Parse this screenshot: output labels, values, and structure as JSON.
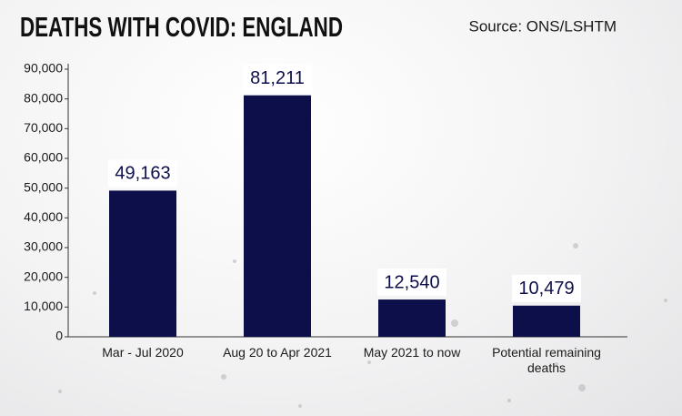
{
  "chart_data": {
    "type": "bar",
    "title": "DEATHS WITH COVID: ENGLAND",
    "source": "Source: ONS/LSHTM",
    "categories": [
      "Mar - Jul 2020",
      "Aug 20 to Apr 2021",
      "May 2021 to now",
      "Potential remaining deaths"
    ],
    "values": [
      49163,
      81211,
      12540,
      10479
    ],
    "value_labels": [
      "49,163",
      "81,211",
      "12,540",
      "10,479"
    ],
    "color": "#0d0f4a",
    "ylim": [
      0,
      90000
    ],
    "yticks": [
      0,
      {
        "value": 10000,
        "label": "10,000"
      },
      {
        "value": 20000,
        "label": "20,000"
      },
      {
        "value": 30000,
        "label": "30,000"
      },
      {
        "value": 40000,
        "label": "40,000"
      },
      {
        "value": 50000,
        "label": "50,000"
      },
      {
        "value": 60000,
        "label": "60,000"
      },
      {
        "value": 70000,
        "label": "70,000"
      },
      {
        "value": 80000,
        "label": "80,000"
      },
      {
        "value": 90000,
        "label": "90,000"
      }
    ]
  }
}
